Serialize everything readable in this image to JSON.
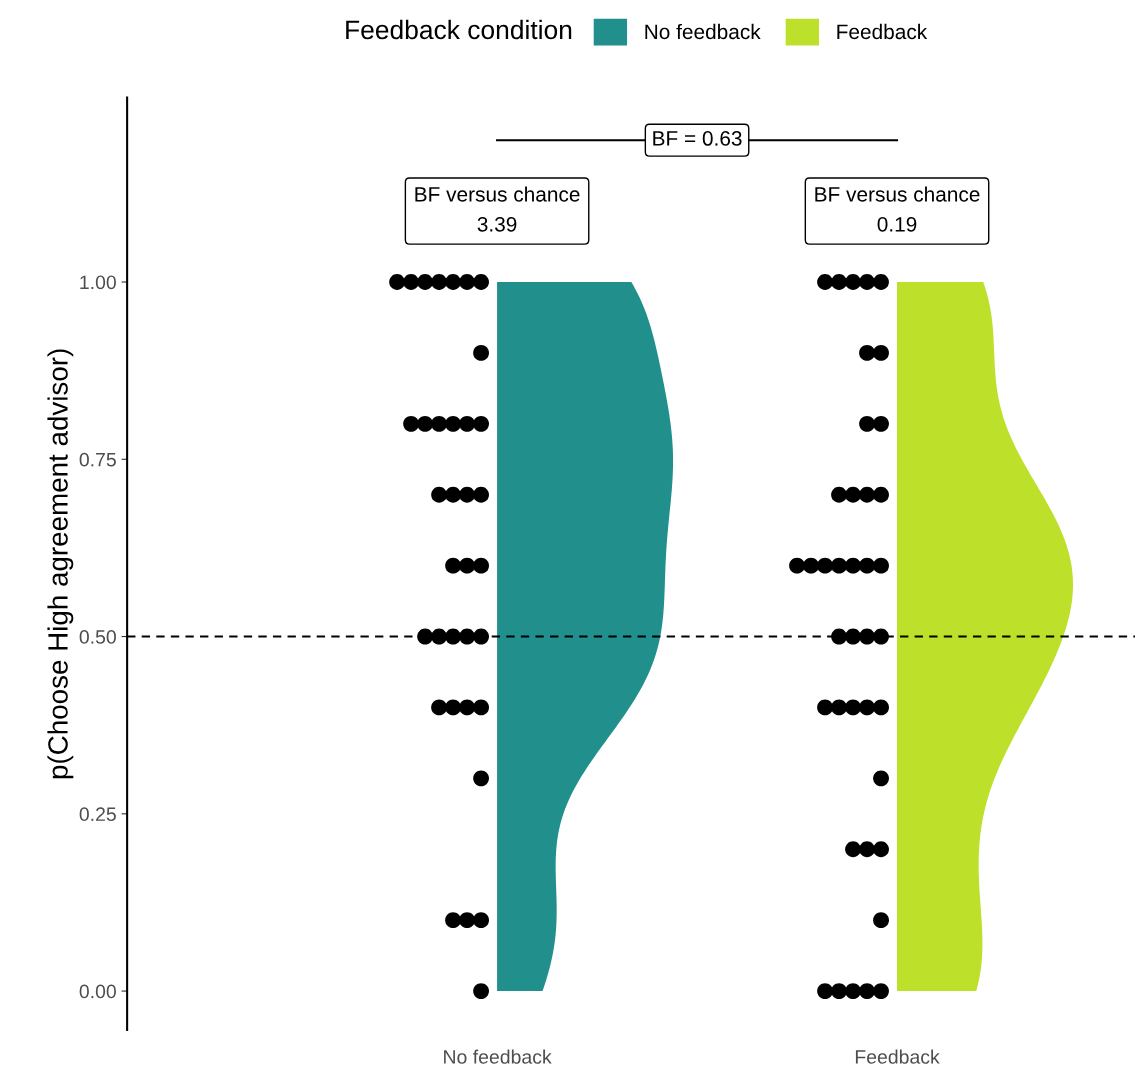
{
  "chart_data": {
    "type": "scatter",
    "ylabel": "p(Choose High agreement advisor)",
    "legend_title": "Feedback condition",
    "legend": "top",
    "categories": [
      "No feedback",
      "Feedback"
    ],
    "ylim": [
      -0.055,
      1.26
    ],
    "yticks": [
      {
        "value": 0,
        "label": "0.00"
      },
      {
        "value": 0.25,
        "label": "0.25"
      },
      {
        "value": 0.5,
        "label": "0.50"
      },
      {
        "value": 0.75,
        "label": "0.75"
      },
      {
        "value": 1,
        "label": "1.00"
      }
    ],
    "grid": false,
    "marker": "circle",
    "ref_lines": [
      {
        "axis": "y",
        "value": 0.5,
        "line_style": "dashed",
        "color": "#000000"
      }
    ],
    "annotations": [
      "BF = 0.63",
      "BF versus chance\n3.39",
      "BF versus chance\n0.19"
    ],
    "series": [
      {
        "name": "No feedback",
        "color": "#21908c",
        "x": [
          "No feedback",
          "No feedback",
          "No feedback",
          "No feedback",
          "No feedback",
          "No feedback",
          "No feedback",
          "No feedback",
          "No feedback",
          "No feedback",
          "No feedback",
          "No feedback",
          "No feedback",
          "No feedback",
          "No feedback",
          "No feedback",
          "No feedback",
          "No feedback",
          "No feedback",
          "No feedback",
          "No feedback",
          "No feedback",
          "No feedback",
          "No feedback",
          "No feedback",
          "No feedback",
          "No feedback",
          "No feedback",
          "No feedback",
          "No feedback",
          "No feedback",
          "No feedback",
          "No feedback",
          "No feedback",
          "No feedback"
        ],
        "colors": [
          "#000000",
          "#000000",
          "#000000",
          "#000000",
          "#000000",
          "#000000",
          "#000000",
          "#000000",
          "#000000",
          "#000000",
          "#000000",
          "#000000",
          "#000000",
          "#000000",
          "#000000",
          "#000000",
          "#000000",
          "#000000",
          "#000000",
          "#000000",
          "#000000",
          "#000000",
          "#000000",
          "#000000",
          "#000000",
          "#000000",
          "#000000",
          "#000000",
          "#000000",
          "#000000",
          "#000000",
          "#000000",
          "#000000",
          "#000000",
          "#000000"
        ],
        "values": [
          1,
          1,
          1,
          1,
          1,
          1,
          1,
          0.9,
          0.8,
          0.8,
          0.8,
          0.8,
          0.8,
          0.8,
          0.7,
          0.7,
          0.7,
          0.7,
          0.6,
          0.6,
          0.6,
          0.5,
          0.5,
          0.5,
          0.5,
          0.5,
          0.4,
          0.4,
          0.4,
          0.4,
          0.3,
          0.1,
          0.1,
          0.1,
          0
        ]
      },
      {
        "name": "Feedback",
        "color": "#bde02a",
        "x": [
          "Feedback",
          "Feedback",
          "Feedback",
          "Feedback",
          "Feedback",
          "Feedback",
          "Feedback",
          "Feedback",
          "Feedback",
          "Feedback",
          "Feedback",
          "Feedback",
          "Feedback",
          "Feedback",
          "Feedback",
          "Feedback",
          "Feedback",
          "Feedback",
          "Feedback",
          "Feedback",
          "Feedback",
          "Feedback",
          "Feedback",
          "Feedback",
          "Feedback",
          "Feedback",
          "Feedback",
          "Feedback",
          "Feedback",
          "Feedback",
          "Feedback",
          "Feedback",
          "Feedback",
          "Feedback",
          "Feedback",
          "Feedback",
          "Feedback",
          "Feedback",
          "Feedback"
        ],
        "colors": [
          "#000000",
          "#000000",
          "#000000",
          "#000000",
          "#000000",
          "#000000",
          "#000000",
          "#000000",
          "#000000",
          "#000000",
          "#000000",
          "#000000",
          "#000000",
          "#000000",
          "#000000",
          "#000000",
          "#000000",
          "#000000",
          "#000000",
          "#000000",
          "#000000",
          "#000000",
          "#000000",
          "#000000",
          "#000000",
          "#000000",
          "#000000",
          "#000000",
          "#000000",
          "#000000",
          "#000000",
          "#000000",
          "#000000",
          "#000000",
          "#000000",
          "#000000",
          "#000000",
          "#000000",
          "#000000"
        ],
        "values": [
          1,
          1,
          1,
          1,
          1,
          0.9,
          0.9,
          0.8,
          0.8,
          0.7,
          0.7,
          0.7,
          0.7,
          0.6,
          0.6,
          0.6,
          0.6,
          0.6,
          0.6,
          0.6,
          0.5,
          0.5,
          0.5,
          0.5,
          0.4,
          0.4,
          0.4,
          0.4,
          0.4,
          0.3,
          0.2,
          0.2,
          0.2,
          0.1,
          0,
          0,
          0,
          0,
          0
        ]
      }
    ]
  }
}
